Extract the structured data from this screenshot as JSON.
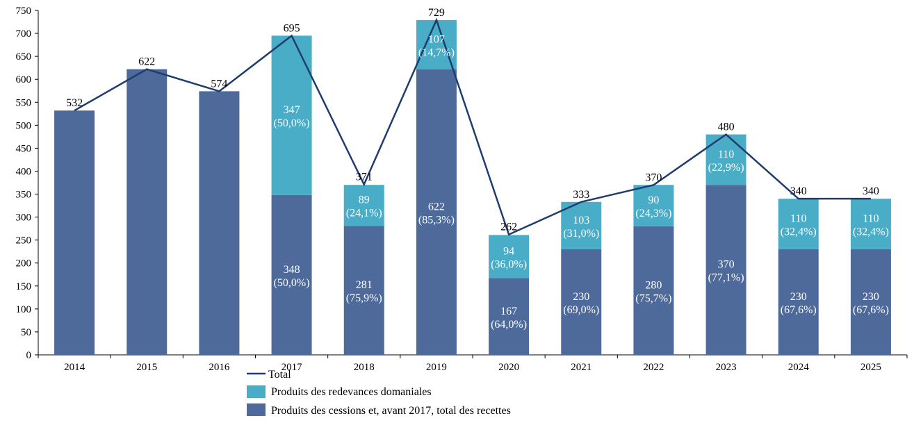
{
  "chart_data": {
    "type": "bar",
    "stacked": true,
    "categories": [
      "2014",
      "2015",
      "2016",
      "2017",
      "2018",
      "2019",
      "2020",
      "2021",
      "2022",
      "2023",
      "2024",
      "2025"
    ],
    "ylim": [
      0,
      750
    ],
    "yticks": [
      "0",
      "50",
      "100",
      "150",
      "200",
      "250",
      "300",
      "350",
      "400",
      "450",
      "500",
      "550",
      "600",
      "650",
      "700",
      "750"
    ],
    "grid": false,
    "legend_position": "bottom-left",
    "series": [
      {
        "name": "Produits des cessions et, avant 2017, total des recettes",
        "color": "#4d6a9a",
        "values": [
          532,
          622,
          574,
          348,
          281,
          622,
          167,
          230,
          280,
          370,
          230,
          230
        ],
        "labels": [
          null,
          null,
          null,
          "348",
          "281",
          "622",
          "167",
          "230",
          "280",
          "370",
          "230",
          "230"
        ],
        "shares": [
          null,
          null,
          null,
          "(50,0%)",
          "(75,9%)",
          "(85,3%)",
          "(64,0%)",
          "(69,0%)",
          "(75,7%)",
          "(77,1%)",
          "(67,6%)",
          "(67,6%)"
        ]
      },
      {
        "name": "Produits des redevances domaniales",
        "color": "#49adc8",
        "values": [
          0,
          0,
          0,
          347,
          89,
          107,
          94,
          103,
          90,
          110,
          110,
          110
        ],
        "labels": [
          null,
          null,
          null,
          "347",
          "89",
          "107",
          "94",
          "103",
          "90",
          "110",
          "110",
          "110"
        ],
        "shares": [
          null,
          null,
          null,
          "(50,0%)",
          "(24,1%)",
          "(14,7%)",
          "(36,0%)",
          "(31,0%)",
          "(24,3%)",
          "(22,9%)",
          "(32,4%)",
          "(32,4%)"
        ]
      }
    ],
    "total": {
      "name": "Total",
      "type": "line",
      "color": "#1f3c6e",
      "values": [
        532,
        622,
        574,
        695,
        371,
        729,
        262,
        333,
        370,
        480,
        340,
        340
      ],
      "labels": [
        "532",
        "622",
        "574",
        "695",
        "371",
        "729",
        "262",
        "333",
        "370",
        "480",
        "340",
        "340"
      ]
    }
  }
}
